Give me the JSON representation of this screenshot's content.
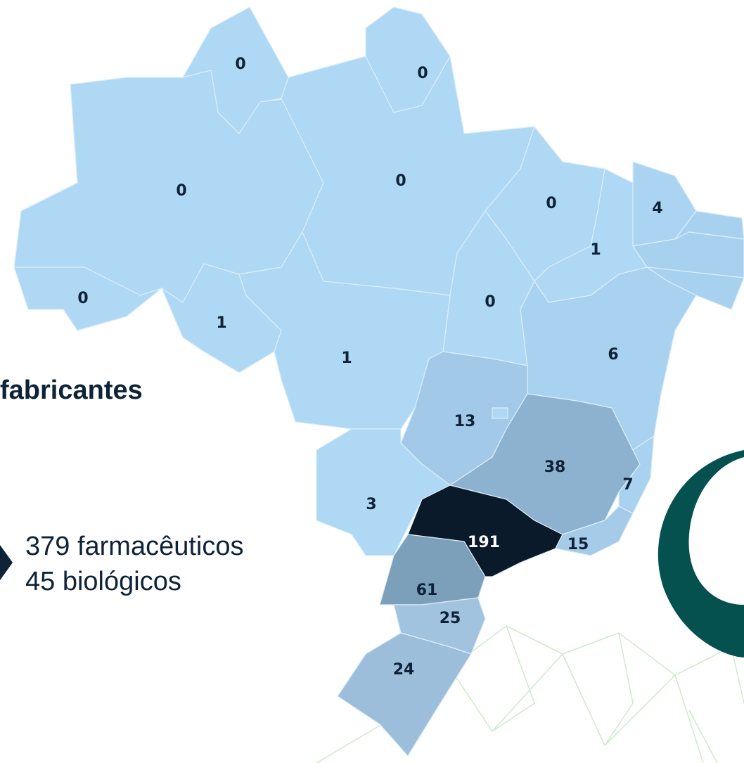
{
  "title": "fabricantes",
  "summary": [
    "379 farmacêuticos",
    "45 biológicos"
  ],
  "regions": [
    {
      "value": 0,
      "color": "#aed8f4"
    },
    {
      "value": 0,
      "color": "#aed8f4"
    },
    {
      "value": 0,
      "color": "#aed8f4"
    },
    {
      "value": 0,
      "color": "#aed8f4"
    },
    {
      "value": 0,
      "color": "#aed8f4"
    },
    {
      "value": 4,
      "color": "#aad4f1"
    },
    {
      "value": 1,
      "color": "#aed8f4"
    },
    {
      "value": 0,
      "color": "#aed8f4"
    },
    {
      "value": 1,
      "color": "#aed8f4"
    },
    {
      "value": 0,
      "color": "#aed8f4"
    },
    {
      "value": 1,
      "color": "#aed8f4"
    },
    {
      "value": 6,
      "color": "#a9d2f0"
    },
    {
      "value": 13,
      "color": "#a3c9e8"
    },
    {
      "value": 38,
      "color": "#8db2cf"
    },
    {
      "value": 7,
      "color": "#a9d2f0"
    },
    {
      "value": 3,
      "color": "#aed8f4"
    },
    {
      "value": 191,
      "color": "#0b1a2b"
    },
    {
      "value": 15,
      "color": "#a5cbe9"
    },
    {
      "value": 61,
      "color": "#7c9fba"
    },
    {
      "value": 25,
      "color": "#a2c3df"
    },
    {
      "value": 24,
      "color": "#9dbedb"
    }
  ]
}
